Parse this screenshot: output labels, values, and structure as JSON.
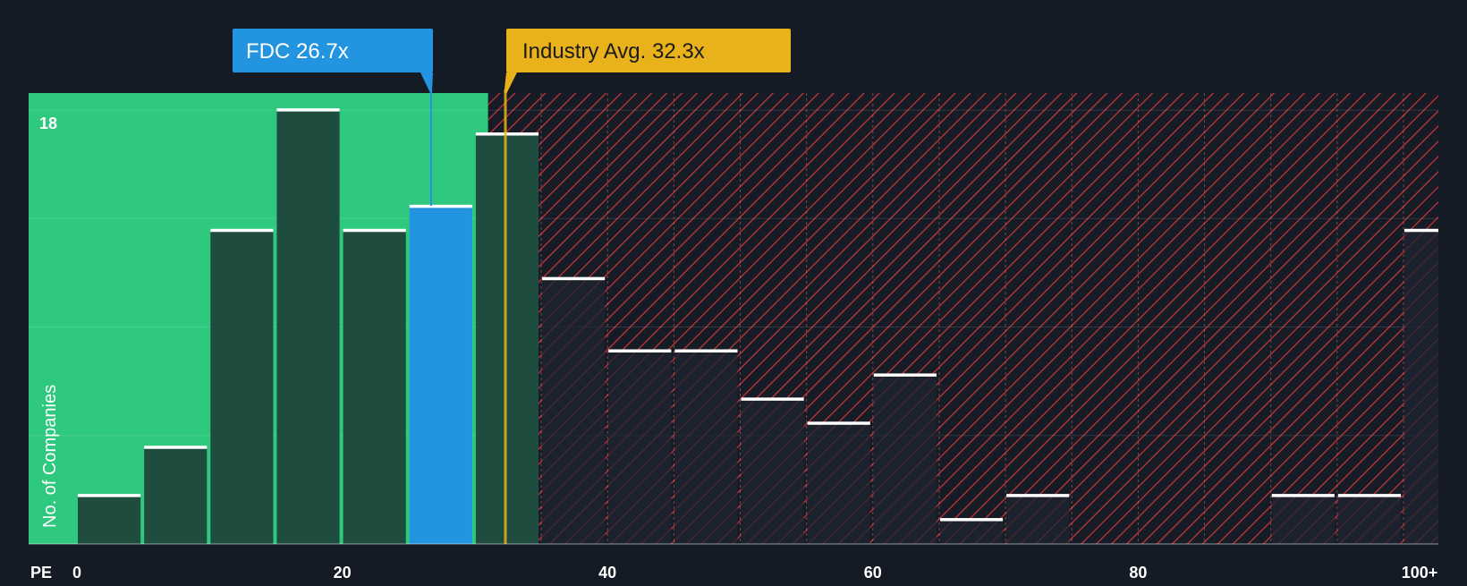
{
  "chart_data": {
    "type": "bar",
    "title": "",
    "xlabel": "PE",
    "ylabel": "No. of Companies",
    "xlim": [
      0,
      100
    ],
    "ylim": [
      0,
      18.6
    ],
    "y_top_tick": "18",
    "bin_width": 5,
    "x_ticks": [
      {
        "value": 0,
        "label": "0"
      },
      {
        "value": 20,
        "label": "20"
      },
      {
        "value": 40,
        "label": "40"
      },
      {
        "value": 60,
        "label": "60"
      },
      {
        "value": 80,
        "label": "80"
      },
      {
        "value": 100,
        "label": "100+"
      }
    ],
    "bins": [
      {
        "start": 0,
        "count": 2
      },
      {
        "start": 5,
        "count": 4
      },
      {
        "start": 10,
        "count": 13
      },
      {
        "start": 15,
        "count": 18
      },
      {
        "start": 20,
        "count": 13
      },
      {
        "start": 25,
        "count": 14,
        "highlight": true
      },
      {
        "start": 30,
        "count": 17
      },
      {
        "start": 35,
        "count": 11
      },
      {
        "start": 40,
        "count": 8
      },
      {
        "start": 45,
        "count": 8
      },
      {
        "start": 50,
        "count": 6
      },
      {
        "start": 55,
        "count": 5
      },
      {
        "start": 60,
        "count": 7
      },
      {
        "start": 65,
        "count": 1
      },
      {
        "start": 70,
        "count": 2
      },
      {
        "start": 75,
        "count": 0
      },
      {
        "start": 80,
        "count": 0
      },
      {
        "start": 85,
        "count": 0
      },
      {
        "start": 90,
        "count": 2
      },
      {
        "start": 95,
        "count": 2
      },
      {
        "start": 100,
        "count": 13
      }
    ],
    "company": {
      "label": "FDC 26.7x",
      "value": 26.7,
      "color": "#2394e0"
    },
    "industry": {
      "label": "Industry Avg. 32.3x",
      "value": 32.3,
      "color": "#eab21a"
    },
    "colors": {
      "background": "#151b24",
      "fair_zone": "#2ec97e",
      "overvalued_zone": "#c8343c",
      "bar_in_zone": "#1e4d3f",
      "bar_outside": "#1e2430",
      "cap": "#ffffff",
      "axis_text": "#ffffff"
    }
  }
}
